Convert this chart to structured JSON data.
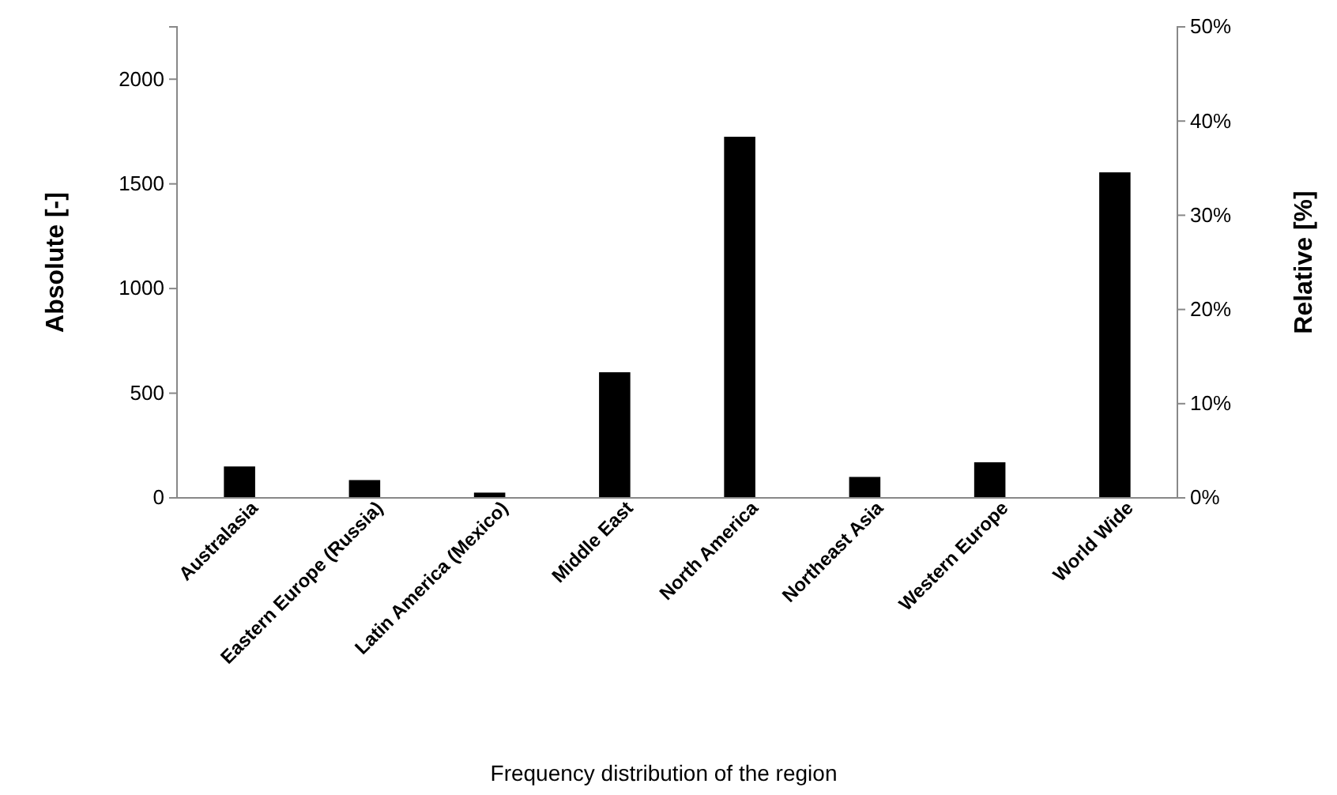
{
  "chart_data": {
    "type": "bar",
    "annotations": [
      "Frequency distribution of the region"
    ],
    "ylabel": "Absolute [-]",
    "y2label": "Relative [%]",
    "categories": [
      "Australasia",
      "Eastern Europe (Russia)",
      "Latin America (Mexico)",
      "Middle East",
      "North America",
      "Northeast Asia",
      "Western Europe",
      "World Wide"
    ],
    "series": [
      {
        "color": "#000000",
        "values": [
          150,
          85,
          25,
          600,
          1725,
          100,
          170,
          1555
        ]
      }
    ],
    "ylim": [
      0,
      2250
    ],
    "yticks": [
      0,
      500,
      1000,
      1500,
      2000
    ],
    "y2lim": [
      0,
      50
    ],
    "y2ticks": [
      {
        "value": 0,
        "label": "0%"
      },
      {
        "value": 10,
        "label": "10%"
      },
      {
        "value": 20,
        "label": "20%"
      },
      {
        "value": 30,
        "label": "30%"
      },
      {
        "value": 40,
        "label": "40%"
      },
      {
        "value": 50,
        "label": "50%"
      }
    ],
    "grid": false
  }
}
